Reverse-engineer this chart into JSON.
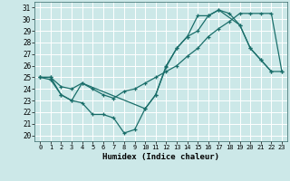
{
  "title": "",
  "xlabel": "Humidex (Indice chaleur)",
  "xlim": [
    -0.5,
    23.5
  ],
  "ylim": [
    19.5,
    31.5
  ],
  "xticks": [
    0,
    1,
    2,
    3,
    4,
    5,
    6,
    7,
    8,
    9,
    10,
    11,
    12,
    13,
    14,
    15,
    16,
    17,
    18,
    19,
    20,
    21,
    22,
    23
  ],
  "yticks": [
    20,
    21,
    22,
    23,
    24,
    25,
    26,
    27,
    28,
    29,
    30,
    31
  ],
  "bg_color": "#cce8e8",
  "grid_color": "#aacccc",
  "line_color": "#1a6e6a",
  "line1_x": [
    0,
    1,
    2,
    3,
    4,
    5,
    6,
    7,
    8,
    9,
    10,
    11,
    12,
    13,
    14,
    15,
    16,
    17,
    19,
    20,
    21,
    22
  ],
  "line1_y": [
    25,
    24.8,
    23.5,
    23,
    22.8,
    21.8,
    21.8,
    21.5,
    20.2,
    20.5,
    22.3,
    23.5,
    25.9,
    27.5,
    28.5,
    30.3,
    30.3,
    30.8,
    29.5,
    27.5,
    26.5,
    25.5
  ],
  "line2_x": [
    0,
    1,
    2,
    3,
    4,
    5,
    6,
    7,
    8,
    9,
    10,
    11,
    12,
    13,
    14,
    15,
    16,
    17,
    18,
    19,
    20,
    21,
    22,
    23
  ],
  "line2_y": [
    25,
    25,
    24.2,
    24,
    24.5,
    24,
    23.5,
    23.2,
    23.8,
    24,
    24.5,
    25,
    25.5,
    26,
    26.8,
    27.5,
    28.5,
    29.2,
    29.8,
    30.5,
    30.5,
    30.5,
    30.5,
    25.5
  ],
  "line3_x": [
    0,
    1,
    2,
    3,
    4,
    10,
    11,
    12,
    13,
    14,
    15,
    16,
    17,
    18,
    19,
    20,
    21,
    22,
    23
  ],
  "line3_y": [
    25,
    25,
    23.5,
    23,
    24.5,
    22.3,
    23.5,
    26,
    27.5,
    28.5,
    29,
    30.3,
    30.8,
    30.5,
    29.5,
    27.5,
    26.5,
    25.5,
    25.5
  ]
}
